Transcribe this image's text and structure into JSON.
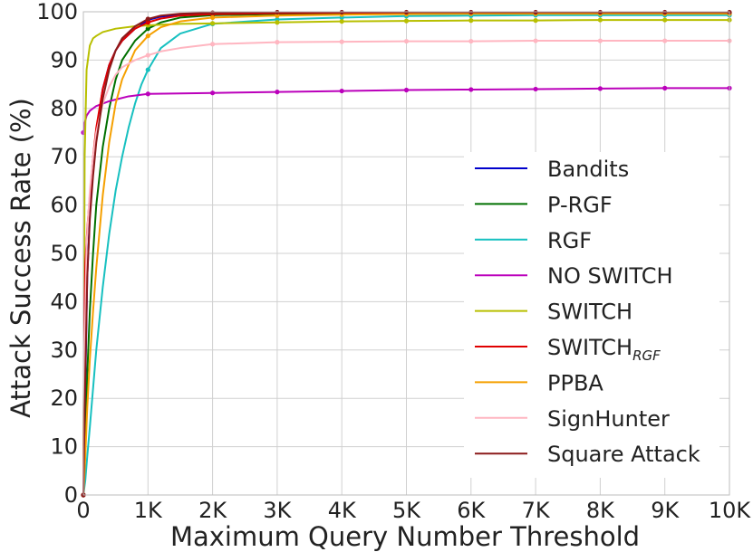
{
  "chart_data": {
    "type": "line",
    "title": "",
    "xlabel": "Maximum Query Number Threshold",
    "ylabel": "Attack Success Rate (%)",
    "xlim": [
      0,
      10000
    ],
    "ylim": [
      0,
      100
    ],
    "grid": true,
    "legend_position": "right",
    "x_ticks": [
      {
        "value": 0,
        "label": "0"
      },
      {
        "value": 1000,
        "label": "1K"
      },
      {
        "value": 2000,
        "label": "2K"
      },
      {
        "value": 3000,
        "label": "3K"
      },
      {
        "value": 4000,
        "label": "4K"
      },
      {
        "value": 5000,
        "label": "5K"
      },
      {
        "value": 6000,
        "label": "6K"
      },
      {
        "value": 7000,
        "label": "7K"
      },
      {
        "value": 8000,
        "label": "8K"
      },
      {
        "value": 9000,
        "label": "9K"
      },
      {
        "value": 10000,
        "label": "10K"
      }
    ],
    "y_ticks": [
      {
        "value": 0,
        "label": "0"
      },
      {
        "value": 10,
        "label": "10"
      },
      {
        "value": 20,
        "label": "20"
      },
      {
        "value": 30,
        "label": "30"
      },
      {
        "value": 40,
        "label": "40"
      },
      {
        "value": 50,
        "label": "50"
      },
      {
        "value": 60,
        "label": "60"
      },
      {
        "value": 70,
        "label": "70"
      },
      {
        "value": 80,
        "label": "80"
      },
      {
        "value": 90,
        "label": "90"
      },
      {
        "value": 100,
        "label": "100"
      }
    ],
    "series": [
      {
        "name": "Bandits",
        "color": "#0000cc",
        "x": [
          0,
          30,
          60,
          100,
          150,
          200,
          300,
          400,
          500,
          600,
          800,
          1000,
          1200,
          1500,
          2000,
          3000,
          4000,
          5000,
          6000,
          7000,
          8000,
          9000,
          10000
        ],
        "y": [
          0,
          22,
          45,
          58,
          68,
          75,
          84,
          89,
          92,
          94,
          96.5,
          98.3,
          99.0,
          99.4,
          99.6,
          99.7,
          99.7,
          99.8,
          99.8,
          99.8,
          99.8,
          99.8,
          99.8
        ]
      },
      {
        "name": "P-RGF",
        "color": "#007000",
        "x": [
          0,
          30,
          60,
          100,
          150,
          200,
          300,
          400,
          500,
          600,
          800,
          1000,
          1200,
          1500,
          2000,
          3000,
          4000,
          5000,
          6000,
          7000,
          8000,
          9000,
          10000
        ],
        "y": [
          0,
          10,
          25,
          38,
          50,
          60,
          72,
          80,
          86,
          90,
          94,
          96.5,
          97.8,
          98.8,
          99.3,
          99.5,
          99.6,
          99.6,
          99.6,
          99.6,
          99.6,
          99.6,
          99.6
        ]
      },
      {
        "name": "RGF",
        "color": "#17c0c0",
        "x": [
          0,
          30,
          60,
          100,
          150,
          200,
          300,
          400,
          500,
          600,
          700,
          800,
          900,
          1000,
          1200,
          1500,
          2000,
          3000,
          4000,
          5000,
          6000,
          7000,
          8000,
          9000,
          10000
        ],
        "y": [
          0,
          3,
          8,
          14,
          22,
          30,
          43,
          54,
          63,
          70,
          76,
          81,
          85,
          88,
          92.5,
          95.5,
          97.5,
          98.4,
          98.8,
          99.1,
          99.2,
          99.3,
          99.3,
          99.3,
          99.3
        ]
      },
      {
        "name": "NO SWITCH",
        "color": "#bb00bb",
        "x": [
          0,
          20,
          50,
          100,
          200,
          400,
          700,
          1000,
          1500,
          2000,
          3000,
          4000,
          5000,
          6000,
          7000,
          8000,
          9000,
          10000
        ],
        "y": [
          75,
          77,
          78.5,
          79.5,
          80.5,
          81.5,
          82.5,
          83.0,
          83.1,
          83.2,
          83.4,
          83.6,
          83.8,
          83.9,
          84.0,
          84.1,
          84.2,
          84.2
        ]
      },
      {
        "name": "SWITCH",
        "color": "#b8bf00",
        "x": [
          0,
          20,
          50,
          100,
          150,
          200,
          300,
          500,
          800,
          1000,
          1500,
          2000,
          3000,
          4000,
          5000,
          6000,
          7000,
          8000,
          9000,
          10000
        ],
        "y": [
          0,
          70,
          88,
          93,
          94.5,
          95,
          95.8,
          96.5,
          97,
          97.2,
          97.5,
          97.6,
          97.8,
          98.0,
          98.1,
          98.2,
          98.2,
          98.3,
          98.3,
          98.3
        ]
      },
      {
        "name": "SWITCH",
        "subscript": "RGF",
        "color": "#e00000",
        "x": [
          0,
          10,
          30,
          60,
          100,
          150,
          200,
          300,
          400,
          500,
          600,
          800,
          1000,
          1200,
          1500,
          2000,
          3000,
          4000,
          5000,
          6000,
          7000,
          8000,
          9000,
          10000
        ],
        "y": [
          0,
          30,
          48,
          55,
          62,
          70,
          76,
          84,
          89,
          92,
          94,
          96.5,
          97.8,
          98.6,
          99.2,
          99.5,
          99.7,
          99.8,
          99.8,
          99.8,
          99.8,
          99.8,
          99.8,
          99.8
        ]
      },
      {
        "name": "PPBA",
        "color": "#f5a000",
        "x": [
          0,
          30,
          60,
          100,
          150,
          200,
          300,
          400,
          500,
          600,
          800,
          1000,
          1200,
          1500,
          2000,
          3000,
          4000,
          5000,
          6000,
          7000,
          8000,
          9000,
          10000
        ],
        "y": [
          0,
          8,
          18,
          28,
          38,
          47,
          62,
          73,
          81,
          86,
          92,
          95,
          96.8,
          98,
          98.8,
          99.2,
          99.4,
          99.5,
          99.6,
          99.6,
          99.6,
          99.6,
          99.6
        ]
      },
      {
        "name": "SignHunter",
        "color": "#ffb6c1",
        "x": [
          0,
          20,
          50,
          100,
          150,
          200,
          300,
          400,
          500,
          600,
          800,
          1000,
          1200,
          1500,
          2000,
          3000,
          4000,
          5000,
          6000,
          7000,
          8000,
          9000,
          10000
        ],
        "y": [
          0,
          30,
          52,
          63,
          70,
          75,
          81,
          84.5,
          87,
          88.5,
          90,
          91,
          91.8,
          92.5,
          93.3,
          93.7,
          93.8,
          93.9,
          93.9,
          94.0,
          94.0,
          94.0,
          94.0
        ]
      },
      {
        "name": "Square Attack",
        "color": "#8b1a1a",
        "x": [
          0,
          30,
          60,
          100,
          150,
          200,
          300,
          400,
          500,
          600,
          800,
          1000,
          1200,
          1500,
          2000,
          3000,
          4000,
          5000,
          6000,
          7000,
          8000,
          9000,
          10000
        ],
        "y": [
          0,
          25,
          45,
          57,
          66,
          73,
          82,
          88,
          92,
          94.5,
          97,
          98.5,
          99.2,
          99.6,
          99.8,
          99.9,
          99.9,
          99.9,
          99.9,
          99.9,
          99.9,
          99.9,
          99.9
        ]
      }
    ]
  }
}
